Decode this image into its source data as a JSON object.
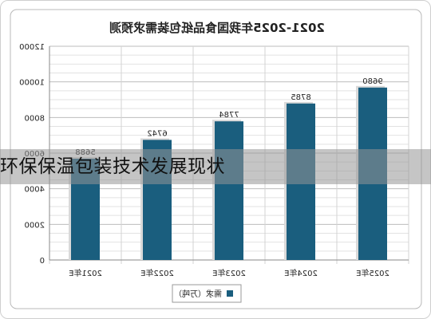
{
  "chart_data": {
    "type": "bar",
    "title": "2021-2025年我国食品纸包装需求预测",
    "categories": [
      "2025年E",
      "2024年E",
      "2023年E",
      "2022年E",
      "2021年E"
    ],
    "series": [
      {
        "name": "需求（万吨）",
        "values": [
          9680,
          8785,
          7784,
          6742,
          5688
        ]
      }
    ],
    "data_labels": [
      "9680",
      "8785",
      "7784",
      "6742",
      "5688"
    ],
    "yticks": [
      "12000",
      "10000",
      "8000",
      "6000",
      "4000",
      "2000",
      "0"
    ],
    "ylim": [
      0,
      12000
    ],
    "grid": true,
    "legend_position": "bottom",
    "mirrored": true,
    "colors": {
      "bar": "#1a5e7e",
      "bar_highlight": "#8fb3c6",
      "grid": "#c9c9c9"
    }
  },
  "overlay": {
    "caption": "环保保温包装技术发展现状"
  }
}
